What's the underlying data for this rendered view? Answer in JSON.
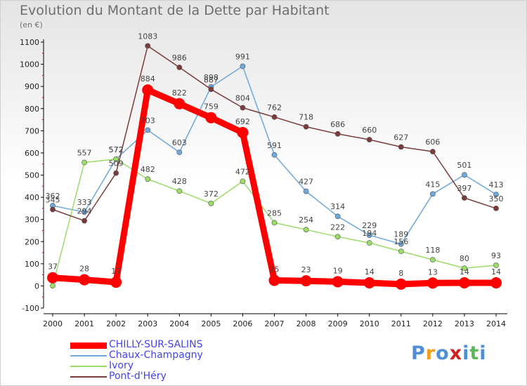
{
  "chart_data": {
    "type": "line",
    "title": "Evolution du Montant de la Dette par Habitant",
    "subtitle": "(en €)",
    "xlabel": "",
    "ylabel": "",
    "x": [
      "2000",
      "2001",
      "2002",
      "2003",
      "2004",
      "2005",
      "2006",
      "2007",
      "2008",
      "2009",
      "2010",
      "2011",
      "2012",
      "2013",
      "2014"
    ],
    "ylim": [
      -100,
      1100
    ],
    "yticks": [
      -100,
      0,
      100,
      200,
      300,
      400,
      500,
      600,
      700,
      800,
      900,
      1000,
      1100
    ],
    "grid": false,
    "legend_position": "bottom-left",
    "series": [
      {
        "name": "CHILLY-SUR-SALINS",
        "color": "#ff0000",
        "values": [
          37,
          28,
          17,
          884,
          822,
          759,
          692,
          25,
          23,
          19,
          14,
          8,
          13,
          14,
          14
        ],
        "labels": [
          "37",
          "28",
          "17",
          "884",
          "822",
          "759",
          "692",
          "25",
          "23",
          "19",
          "14",
          "8",
          "13",
          "14",
          "14"
        ],
        "bold": true
      },
      {
        "name": "Chaux-Champagny",
        "color": "#6fa8dc",
        "values": [
          362,
          333,
          572,
          703,
          603,
          898,
          991,
          591,
          427,
          314,
          229,
          189,
          415,
          501,
          413
        ],
        "labels": [
          "362",
          "333",
          "572",
          "703",
          "603",
          "898",
          "991",
          "591",
          "427",
          "314",
          "229",
          "189",
          "415",
          "501",
          "413"
        ],
        "bold": false
      },
      {
        "name": "Ivory",
        "color": "#99dd66",
        "values": [
          1,
          557,
          572,
          482,
          428,
          372,
          472,
          285,
          254,
          222,
          194,
          156,
          118,
          80,
          93
        ],
        "labels": [
          "",
          "557",
          "572",
          "482",
          "428",
          "372",
          "472",
          "285",
          "254",
          "222",
          "194",
          "156",
          "118",
          "80",
          "93"
        ],
        "bold": false
      },
      {
        "name": "Pont-d'Héry",
        "color": "#7a3b3b",
        "values": [
          345,
          294,
          509,
          1083,
          986,
          887,
          804,
          762,
          718,
          686,
          660,
          627,
          606,
          397,
          350
        ],
        "labels": [
          "345",
          "294",
          "509",
          "1083",
          "986",
          "887",
          "804",
          "762",
          "718",
          "686",
          "660",
          "627",
          "606",
          "397",
          "350"
        ],
        "bold": false
      }
    ]
  },
  "logo": {
    "text": "Proxiti",
    "letters": [
      "P",
      "r",
      "o",
      "x",
      "i",
      "t",
      "i"
    ],
    "colors": [
      "#4f8fd6",
      "#f0a020",
      "#4f8fd6",
      "#d02020",
      "#4f8fd6",
      "#5cb85c",
      "#4f8fd6"
    ]
  }
}
